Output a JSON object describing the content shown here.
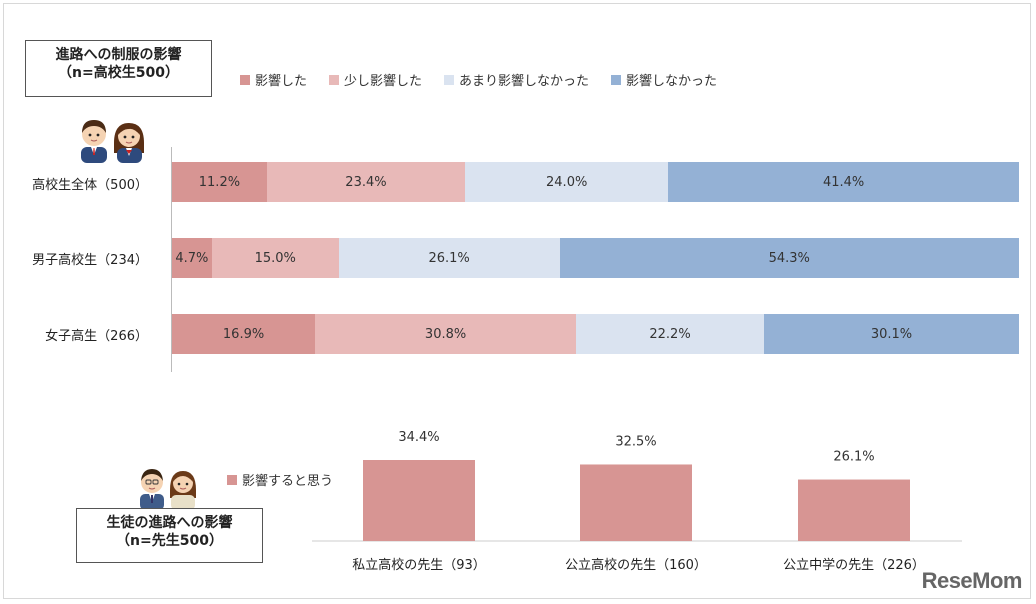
{
  "chart1": {
    "title_line1": "進路への制服の影響",
    "title_line2": "（n=高校生500）",
    "legend": [
      {
        "name": "影響した",
        "color": "#d79593"
      },
      {
        "name": "少し影響した",
        "color": "#e8b9b8"
      },
      {
        "name": "あまり影響しなかった",
        "color": "#dae3f0"
      },
      {
        "name": "影響しなかった",
        "color": "#94b1d5"
      }
    ],
    "icon": "students-icon"
  },
  "chart2": {
    "title_line1": "生徒の進路への影響",
    "title_line2": "（n=先生500）",
    "legend": [
      {
        "name": "影響すると思う",
        "color": "#d79593"
      }
    ],
    "icon": "teachers-icon"
  },
  "chart_data": [
    {
      "type": "bar",
      "orientation": "horizontal",
      "stacked": true,
      "title": "進路への制服の影響 （n=高校生500）",
      "categories": [
        "高校生全体（500）",
        "男子高校生（234）",
        "女子高生（266）"
      ],
      "series": [
        {
          "name": "影響した",
          "values": [
            11.2,
            4.7,
            16.9
          ],
          "labels": [
            "11.2%",
            "4.7%",
            "16.9%"
          ]
        },
        {
          "name": "少し影響した",
          "values": [
            23.4,
            15.0,
            30.8
          ],
          "labels": [
            "23.4%",
            "15.0%",
            "30.8%"
          ]
        },
        {
          "name": "あまり影響しなかった",
          "values": [
            24.0,
            26.1,
            22.2
          ],
          "labels": [
            "24.0%",
            "26.1%",
            "22.2%"
          ]
        },
        {
          "name": "影響しなかった",
          "values": [
            41.4,
            54.3,
            30.1
          ],
          "labels": [
            "41.4%",
            "54.3%",
            "30.1%"
          ]
        }
      ],
      "xlim": [
        0,
        100
      ],
      "legend": "top"
    },
    {
      "type": "bar",
      "title": "生徒の進路への影響 （n=先生500）",
      "categories": [
        "私立高校の先生（93）",
        "公立高校の先生（160）",
        "公立中学の先生（226）"
      ],
      "series": [
        {
          "name": "影響すると思う",
          "values": [
            34.4,
            32.5,
            26.1
          ],
          "labels": [
            "34.4%",
            "32.5%",
            "26.1%"
          ]
        }
      ],
      "ylim": [
        0,
        40
      ],
      "legend": "left"
    }
  ],
  "logo": "ReseMom"
}
